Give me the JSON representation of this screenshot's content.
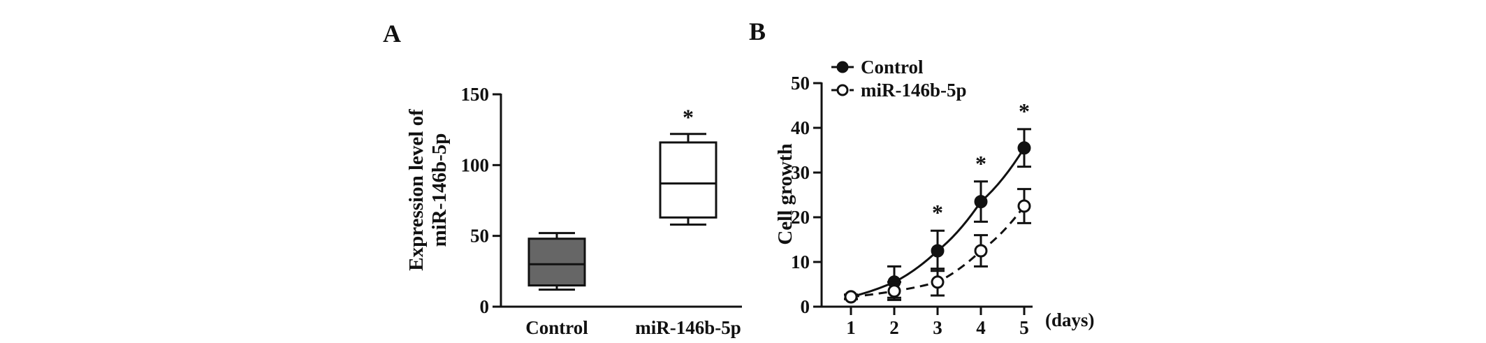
{
  "chart_data": [
    {
      "panel": "A",
      "type": "box",
      "ylabel_lines": [
        "Expression level of",
        "miR-146b-5p"
      ],
      "ylim": [
        0,
        150
      ],
      "yticks": [
        0,
        50,
        100,
        150
      ],
      "categories": [
        "Control",
        "miR-146b-5p"
      ],
      "boxes": [
        {
          "category": "Control",
          "min": 12,
          "q1": 15,
          "median": 30,
          "q3": 48,
          "max": 52,
          "fill": "#666666",
          "annotation": ""
        },
        {
          "category": "miR-146b-5p",
          "min": 58,
          "q1": 63,
          "median": 87,
          "q3": 116,
          "max": 122,
          "fill": "#ffffff",
          "annotation": "*"
        }
      ],
      "grid": false
    },
    {
      "panel": "B",
      "type": "line",
      "ylabel": "Cell growth",
      "x_unit_label": "(days)",
      "ylim": [
        0,
        50
      ],
      "yticks": [
        0,
        10,
        20,
        30,
        40,
        50
      ],
      "x": [
        1,
        2,
        3,
        4,
        5
      ],
      "series": [
        {
          "name": "Control",
          "marker": "filled-circle",
          "line": "solid",
          "values": [
            2.2,
            5.5,
            12.5,
            23.5,
            35.5
          ],
          "errors": [
            0.5,
            3.5,
            4.5,
            4.5,
            4.2
          ]
        },
        {
          "name": "miR-146b-5p",
          "marker": "open-circle",
          "line": "dashed",
          "values": [
            2.2,
            3.5,
            5.5,
            12.5,
            22.5
          ],
          "errors": [
            0.5,
            2.0,
            3.0,
            3.5,
            3.8
          ]
        }
      ],
      "annotations": [
        {
          "x": 3,
          "text": "*"
        },
        {
          "x": 4,
          "text": "*"
        },
        {
          "x": 5,
          "text": "*"
        }
      ],
      "legend_position": "top-left",
      "grid": false
    }
  ]
}
